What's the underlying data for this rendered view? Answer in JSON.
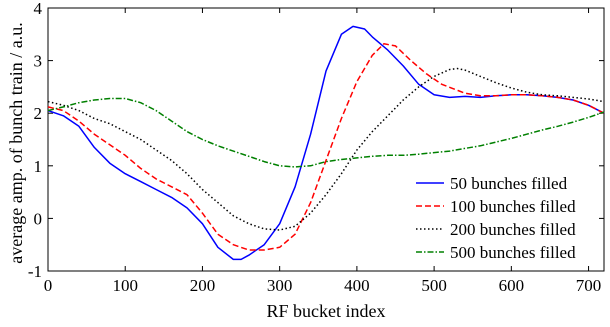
{
  "chart_data": {
    "type": "line",
    "title": "",
    "xlabel": "RF bucket index",
    "ylabel": "average amp. of bunch train / a.u.",
    "xlim": [
      0,
      720
    ],
    "ylim": [
      -1,
      4
    ],
    "xticks": [
      "0",
      "100",
      "200",
      "300",
      "400",
      "500",
      "600",
      "700"
    ],
    "yticks": [
      "-1",
      "0",
      "1",
      "2",
      "3",
      "4"
    ],
    "grid": false,
    "legend_position": "bottom-right",
    "series": [
      {
        "name": "50 bunches filled",
        "color": "#0000ff",
        "dash": "solid",
        "points": [
          [
            0,
            2.05
          ],
          [
            20,
            1.95
          ],
          [
            40,
            1.75
          ],
          [
            60,
            1.35
          ],
          [
            80,
            1.05
          ],
          [
            100,
            0.85
          ],
          [
            120,
            0.7
          ],
          [
            140,
            0.55
          ],
          [
            160,
            0.4
          ],
          [
            180,
            0.2
          ],
          [
            200,
            -0.1
          ],
          [
            220,
            -0.55
          ],
          [
            240,
            -0.78
          ],
          [
            250,
            -0.78
          ],
          [
            260,
            -0.7
          ],
          [
            280,
            -0.5
          ],
          [
            300,
            -0.1
          ],
          [
            320,
            0.6
          ],
          [
            340,
            1.6
          ],
          [
            360,
            2.8
          ],
          [
            380,
            3.5
          ],
          [
            395,
            3.65
          ],
          [
            410,
            3.6
          ],
          [
            420,
            3.45
          ],
          [
            440,
            3.2
          ],
          [
            460,
            2.9
          ],
          [
            480,
            2.55
          ],
          [
            500,
            2.35
          ],
          [
            520,
            2.3
          ],
          [
            540,
            2.32
          ],
          [
            560,
            2.3
          ],
          [
            580,
            2.33
          ],
          [
            600,
            2.35
          ],
          [
            620,
            2.35
          ],
          [
            640,
            2.33
          ],
          [
            660,
            2.3
          ],
          [
            680,
            2.25
          ],
          [
            700,
            2.15
          ],
          [
            720,
            2.0
          ]
        ]
      },
      {
        "name": "100 bunches filled",
        "color": "#ff0000",
        "dash": "6,3",
        "points": [
          [
            0,
            2.12
          ],
          [
            20,
            2.05
          ],
          [
            40,
            1.85
          ],
          [
            60,
            1.6
          ],
          [
            80,
            1.4
          ],
          [
            100,
            1.2
          ],
          [
            120,
            0.95
          ],
          [
            140,
            0.75
          ],
          [
            160,
            0.6
          ],
          [
            180,
            0.45
          ],
          [
            200,
            0.1
          ],
          [
            220,
            -0.3
          ],
          [
            240,
            -0.5
          ],
          [
            260,
            -0.6
          ],
          [
            280,
            -0.6
          ],
          [
            300,
            -0.55
          ],
          [
            320,
            -0.3
          ],
          [
            340,
            0.3
          ],
          [
            360,
            1.1
          ],
          [
            380,
            1.9
          ],
          [
            400,
            2.6
          ],
          [
            420,
            3.1
          ],
          [
            435,
            3.32
          ],
          [
            450,
            3.28
          ],
          [
            470,
            3.0
          ],
          [
            490,
            2.75
          ],
          [
            510,
            2.55
          ],
          [
            540,
            2.38
          ],
          [
            560,
            2.33
          ],
          [
            580,
            2.33
          ],
          [
            600,
            2.35
          ],
          [
            620,
            2.35
          ],
          [
            640,
            2.33
          ],
          [
            660,
            2.3
          ],
          [
            680,
            2.25
          ],
          [
            700,
            2.15
          ],
          [
            720,
            2.0
          ]
        ]
      },
      {
        "name": "200 bunches filled",
        "color": "#000000",
        "dash": "1.5,2.5",
        "points": [
          [
            0,
            2.22
          ],
          [
            20,
            2.15
          ],
          [
            40,
            2.05
          ],
          [
            60,
            1.9
          ],
          [
            80,
            1.8
          ],
          [
            100,
            1.65
          ],
          [
            120,
            1.5
          ],
          [
            140,
            1.3
          ],
          [
            160,
            1.1
          ],
          [
            180,
            0.85
          ],
          [
            200,
            0.55
          ],
          [
            220,
            0.3
          ],
          [
            240,
            0.05
          ],
          [
            260,
            -0.1
          ],
          [
            280,
            -0.2
          ],
          [
            300,
            -0.22
          ],
          [
            320,
            -0.15
          ],
          [
            340,
            0.1
          ],
          [
            360,
            0.45
          ],
          [
            380,
            0.85
          ],
          [
            400,
            1.3
          ],
          [
            420,
            1.65
          ],
          [
            440,
            1.95
          ],
          [
            460,
            2.25
          ],
          [
            480,
            2.5
          ],
          [
            500,
            2.7
          ],
          [
            520,
            2.83
          ],
          [
            530,
            2.85
          ],
          [
            540,
            2.82
          ],
          [
            560,
            2.7
          ],
          [
            580,
            2.58
          ],
          [
            600,
            2.48
          ],
          [
            620,
            2.4
          ],
          [
            640,
            2.35
          ],
          [
            660,
            2.33
          ],
          [
            680,
            2.3
          ],
          [
            700,
            2.27
          ],
          [
            720,
            2.22
          ]
        ]
      },
      {
        "name": "500 bunches filled",
        "color": "#008000",
        "dash": "6,2,1.5,2",
        "points": [
          [
            0,
            2.05
          ],
          [
            20,
            2.12
          ],
          [
            40,
            2.2
          ],
          [
            60,
            2.25
          ],
          [
            80,
            2.28
          ],
          [
            100,
            2.28
          ],
          [
            120,
            2.2
          ],
          [
            140,
            2.05
          ],
          [
            160,
            1.85
          ],
          [
            180,
            1.65
          ],
          [
            200,
            1.5
          ],
          [
            220,
            1.38
          ],
          [
            240,
            1.28
          ],
          [
            260,
            1.18
          ],
          [
            280,
            1.08
          ],
          [
            300,
            1.0
          ],
          [
            320,
            0.98
          ],
          [
            340,
            1.0
          ],
          [
            360,
            1.08
          ],
          [
            380,
            1.12
          ],
          [
            400,
            1.15
          ],
          [
            420,
            1.18
          ],
          [
            440,
            1.2
          ],
          [
            460,
            1.2
          ],
          [
            480,
            1.22
          ],
          [
            500,
            1.25
          ],
          [
            520,
            1.28
          ],
          [
            540,
            1.33
          ],
          [
            560,
            1.38
          ],
          [
            580,
            1.45
          ],
          [
            600,
            1.52
          ],
          [
            620,
            1.6
          ],
          [
            640,
            1.68
          ],
          [
            660,
            1.75
          ],
          [
            680,
            1.83
          ],
          [
            700,
            1.92
          ],
          [
            720,
            2.02
          ]
        ]
      }
    ]
  }
}
